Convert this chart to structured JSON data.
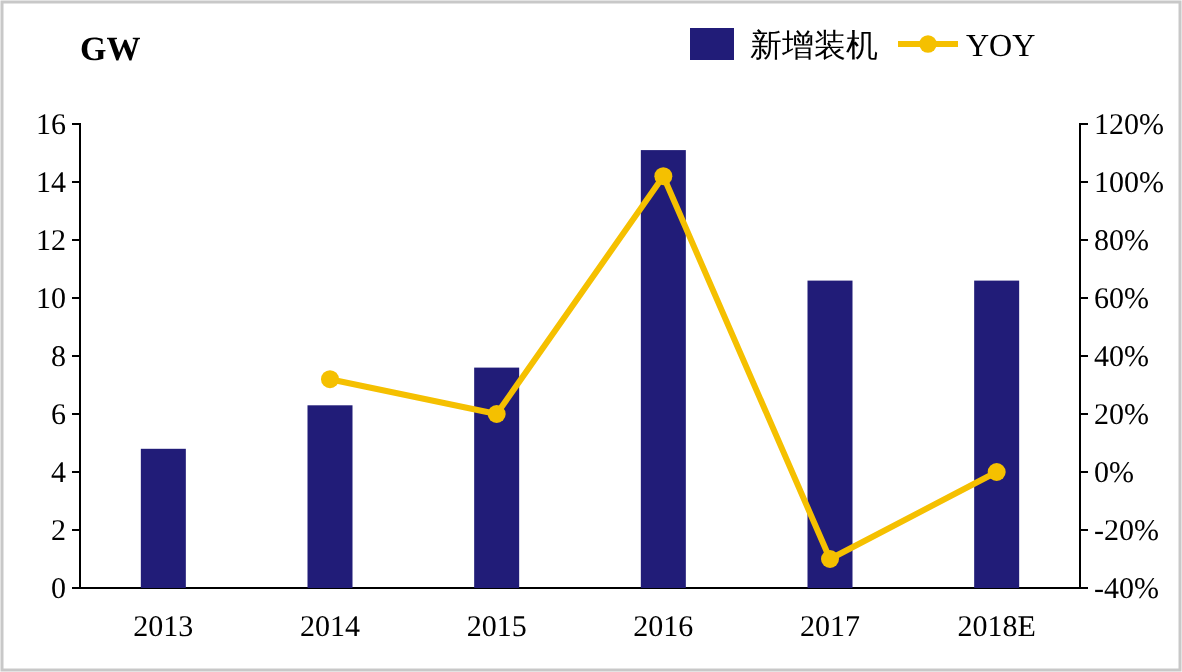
{
  "chart_data": {
    "type": "bar",
    "ylabel": "GW",
    "categories": [
      "2013",
      "2014",
      "2015",
      "2016",
      "2017",
      "2018E"
    ],
    "series": [
      {
        "name": "新增装机",
        "color": "#211c78",
        "values": [
          4.8,
          6.3,
          7.6,
          15.1,
          10.6,
          10.6
        ]
      },
      {
        "name": "YOY",
        "type": "line",
        "axis": "y2",
        "color": "#f5c000",
        "values": [
          null,
          32,
          20,
          102,
          -30,
          0
        ]
      }
    ],
    "ylim": [
      0,
      16
    ],
    "yticks": [
      0,
      2,
      4,
      6,
      8,
      10,
      12,
      14,
      16
    ],
    "y2lim": [
      -40,
      120
    ],
    "y2ticks": [
      {
        "value": -40,
        "label": "-40%"
      },
      {
        "value": -20,
        "label": "-20%"
      },
      {
        "value": 0,
        "label": "0%"
      },
      {
        "value": 20,
        "label": "20%"
      },
      {
        "value": 40,
        "label": "40%"
      },
      {
        "value": 60,
        "label": "60%"
      },
      {
        "value": 80,
        "label": "80%"
      },
      {
        "value": 100,
        "label": "100%"
      },
      {
        "value": 120,
        "label": "120%"
      }
    ],
    "legend": "top",
    "marker": "circle",
    "line_style": "solid",
    "grid": false
  }
}
